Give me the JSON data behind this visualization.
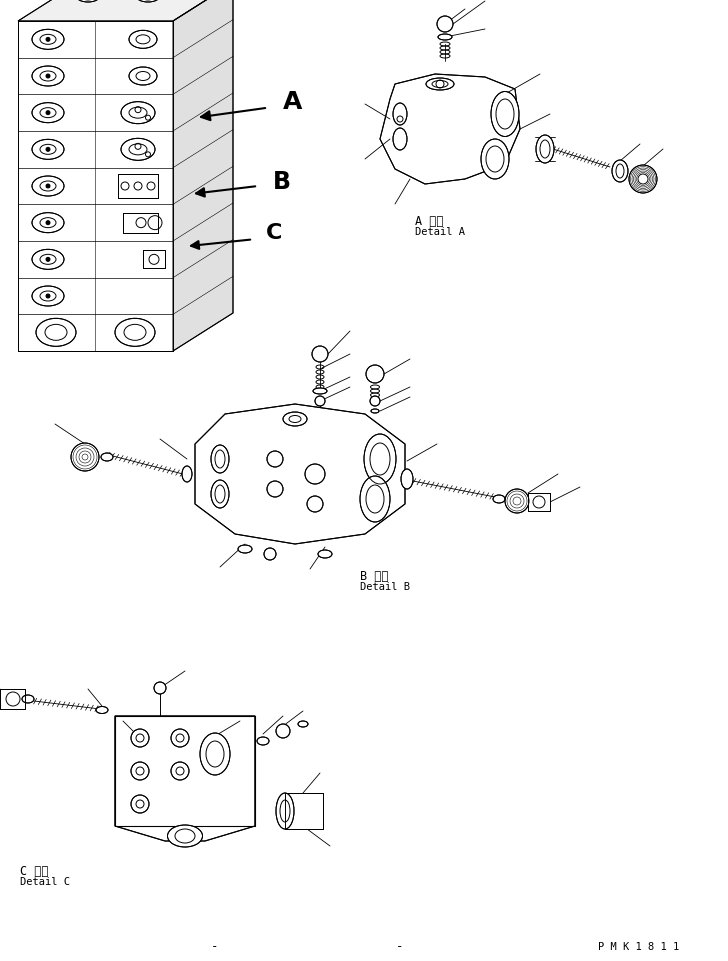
{
  "bg_color": "#ffffff",
  "line_color": "#000000",
  "label_A_japanese": "A 詳細",
  "label_A_english": "Detail A",
  "label_B_japanese": "B 詳細",
  "label_B_english": "Detail B",
  "label_C_japanese": "C 詳細",
  "label_C_english": "Detail C",
  "watermark": "P M K 1 8 1 1",
  "figsize": [
    7.28,
    9.62
  ],
  "dpi": 100
}
